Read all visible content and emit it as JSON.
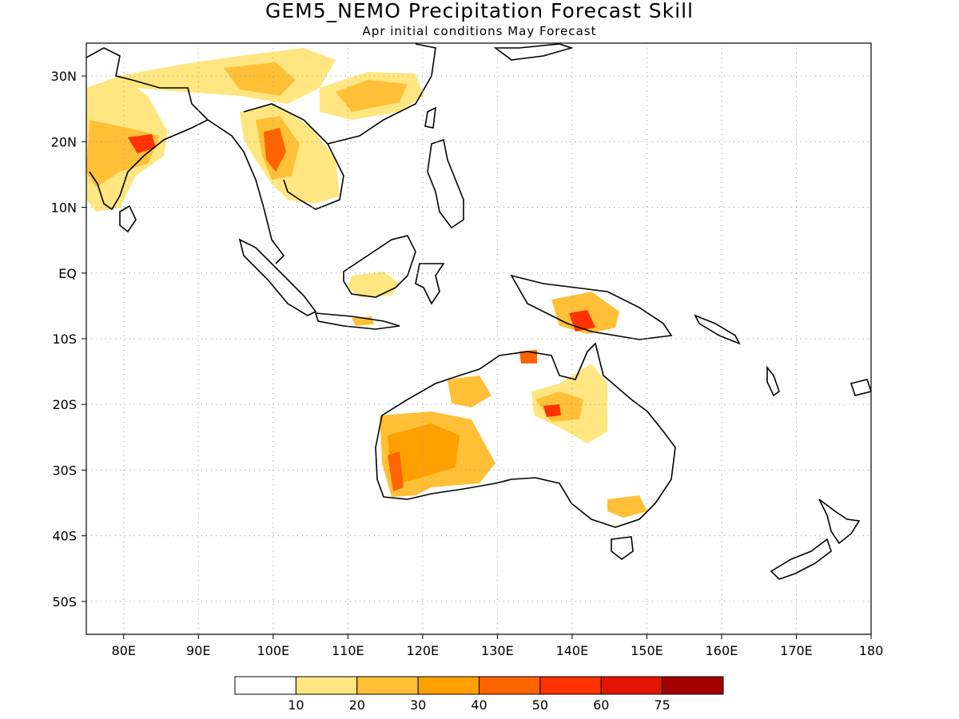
{
  "title": "GEM5_NEMO Precipitation Forecast Skill",
  "subtitle": "Apr initial conditions  May Forecast",
  "map": {
    "lon_range": [
      75,
      180
    ],
    "lat_range": [
      -55,
      35
    ],
    "lat_ticks": [
      {
        "value": 30,
        "label": "30N"
      },
      {
        "value": 20,
        "label": "20N"
      },
      {
        "value": 10,
        "label": "10N"
      },
      {
        "value": 0,
        "label": "EQ"
      },
      {
        "value": -10,
        "label": "10S"
      },
      {
        "value": -20,
        "label": "20S"
      },
      {
        "value": -30,
        "label": "30S"
      },
      {
        "value": -40,
        "label": "40S"
      },
      {
        "value": -50,
        "label": "50S"
      }
    ],
    "lon_ticks": [
      {
        "value": 80,
        "label": "80E"
      },
      {
        "value": 90,
        "label": "90E"
      },
      {
        "value": 100,
        "label": "100E"
      },
      {
        "value": 110,
        "label": "110E"
      },
      {
        "value": 120,
        "label": "120E"
      },
      {
        "value": 130,
        "label": "130E"
      },
      {
        "value": 140,
        "label": "140E"
      },
      {
        "value": 150,
        "label": "150E"
      },
      {
        "value": 160,
        "label": "160E"
      },
      {
        "value": 170,
        "label": "170E"
      },
      {
        "value": 180,
        "label": "180"
      }
    ],
    "grid": "dotted"
  },
  "colorbar": {
    "colors": [
      "#ffffff",
      "#ffe680",
      "#ffc038",
      "#ff9f00",
      "#ff6400",
      "#ff3200",
      "#e11400",
      "#a50000"
    ],
    "labels": [
      "10",
      "20",
      "30",
      "40",
      "50",
      "60",
      "75"
    ]
  }
}
